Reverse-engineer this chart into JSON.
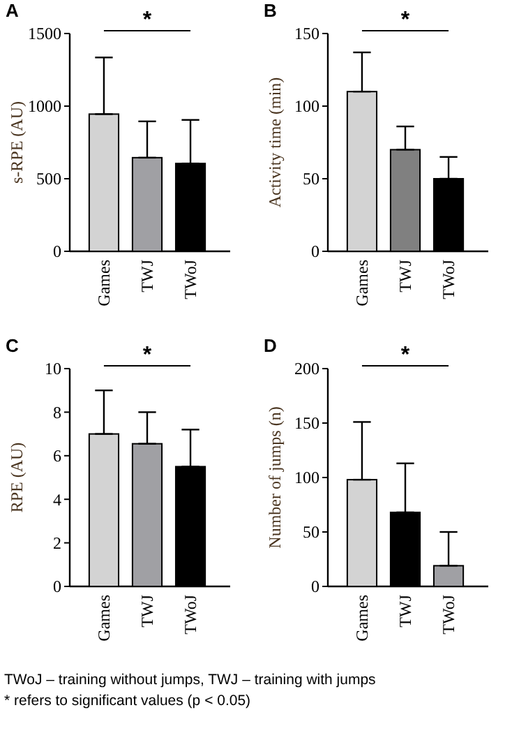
{
  "chart_data": [
    {
      "type": "bar",
      "title": "A",
      "ylabel": "s-RPE (AU)",
      "categories": [
        "Games",
        "TWJ",
        "TWoJ"
      ],
      "values": [
        945,
        645,
        605
      ],
      "colors": [
        "#d3d3d3",
        "#a0a0a4",
        "#000000"
      ],
      "errors": [
        [
          945,
          1335
        ],
        [
          645,
          895
        ],
        [
          605,
          905
        ]
      ],
      "ylim": [
        0,
        1500
      ],
      "yticks": [
        0,
        500,
        1000,
        1500
      ],
      "annotations": [
        "*"
      ]
    },
    {
      "type": "bar",
      "title": "B",
      "ylabel": "Activity time (min)",
      "categories": [
        "Games",
        "TWJ",
        "TWoJ"
      ],
      "values": [
        110,
        70,
        50
      ],
      "colors": [
        "#d3d3d3",
        "#808080",
        "#000000"
      ],
      "errors": [
        [
          110,
          137
        ],
        [
          70,
          86
        ],
        [
          50,
          65
        ]
      ],
      "ylim": [
        0,
        150
      ],
      "yticks": [
        0,
        50,
        100,
        150
      ],
      "annotations": [
        "*"
      ]
    },
    {
      "type": "bar",
      "title": "C",
      "ylabel": "RPE (AU)",
      "categories": [
        "Games",
        "TWJ",
        "TWoJ"
      ],
      "values": [
        7.0,
        6.55,
        5.5
      ],
      "colors": [
        "#d3d3d3",
        "#a0a0a4",
        "#000000"
      ],
      "errors": [
        [
          7.0,
          9.0
        ],
        [
          6.55,
          8.0
        ],
        [
          5.5,
          7.2
        ]
      ],
      "ylim": [
        0,
        10
      ],
      "yticks": [
        0,
        2,
        4,
        6,
        8,
        10
      ],
      "annotations": [
        "*"
      ]
    },
    {
      "type": "bar",
      "title": "D",
      "ylabel": "Number of jumps (n)",
      "categories": [
        "Games",
        "TWJ",
        "TWoJ"
      ],
      "values": [
        98,
        68,
        19
      ],
      "colors": [
        "#d3d3d3",
        "#000000",
        "#a0a0a4"
      ],
      "errors": [
        [
          98,
          151
        ],
        [
          68,
          113
        ],
        [
          19,
          50
        ]
      ],
      "ylim": [
        0,
        200
      ],
      "yticks": [
        0,
        50,
        100,
        150,
        200
      ],
      "annotations": [
        "*",
        "TWoJ – training without jumps, TWJ – training with jumps",
        "* refers to significant values (p < 0.05)"
      ]
    }
  ]
}
